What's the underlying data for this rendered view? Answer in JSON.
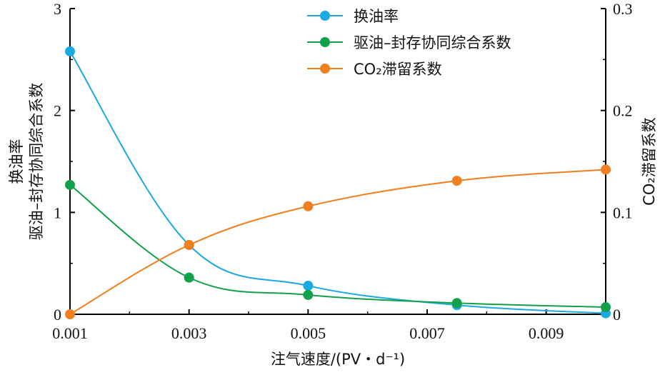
{
  "chart_data": {
    "type": "line",
    "x": [
      0.001,
      0.003,
      0.005,
      0.0075,
      0.01
    ],
    "x_ticks": [
      "0.001",
      "0.003",
      "0.005",
      "0.007",
      "0.009"
    ],
    "y_left_ticks": [
      "0",
      "1",
      "2",
      "3"
    ],
    "y_right_ticks": [
      "0",
      "0.1",
      "0.2",
      "0.3"
    ],
    "xlim": [
      0.001,
      0.01
    ],
    "y_left_lim": [
      0,
      3
    ],
    "y_right_lim": [
      0,
      0.3
    ],
    "xlabel": "注气速度/(PV・d⁻¹)",
    "ylabel_left_line1": "换油率",
    "ylabel_left_line2": "驱油–封存协同综合系数",
    "ylabel_right": "CO₂滞留系数",
    "legend_position": "top-center",
    "grid": false,
    "series": [
      {
        "name": "换油率",
        "axis": "left",
        "color": "#1ba9e1",
        "values": [
          2.58,
          0.68,
          0.28,
          0.09,
          0.01
        ]
      },
      {
        "name": "驱油–封存协同综合系数",
        "axis": "left",
        "color": "#12a04b",
        "values": [
          1.27,
          0.36,
          0.19,
          0.11,
          0.07
        ]
      },
      {
        "name": "CO₂滞留系数",
        "axis": "right",
        "color": "#f07f1f",
        "values": [
          0.0,
          0.068,
          0.106,
          0.131,
          0.142
        ]
      }
    ]
  }
}
